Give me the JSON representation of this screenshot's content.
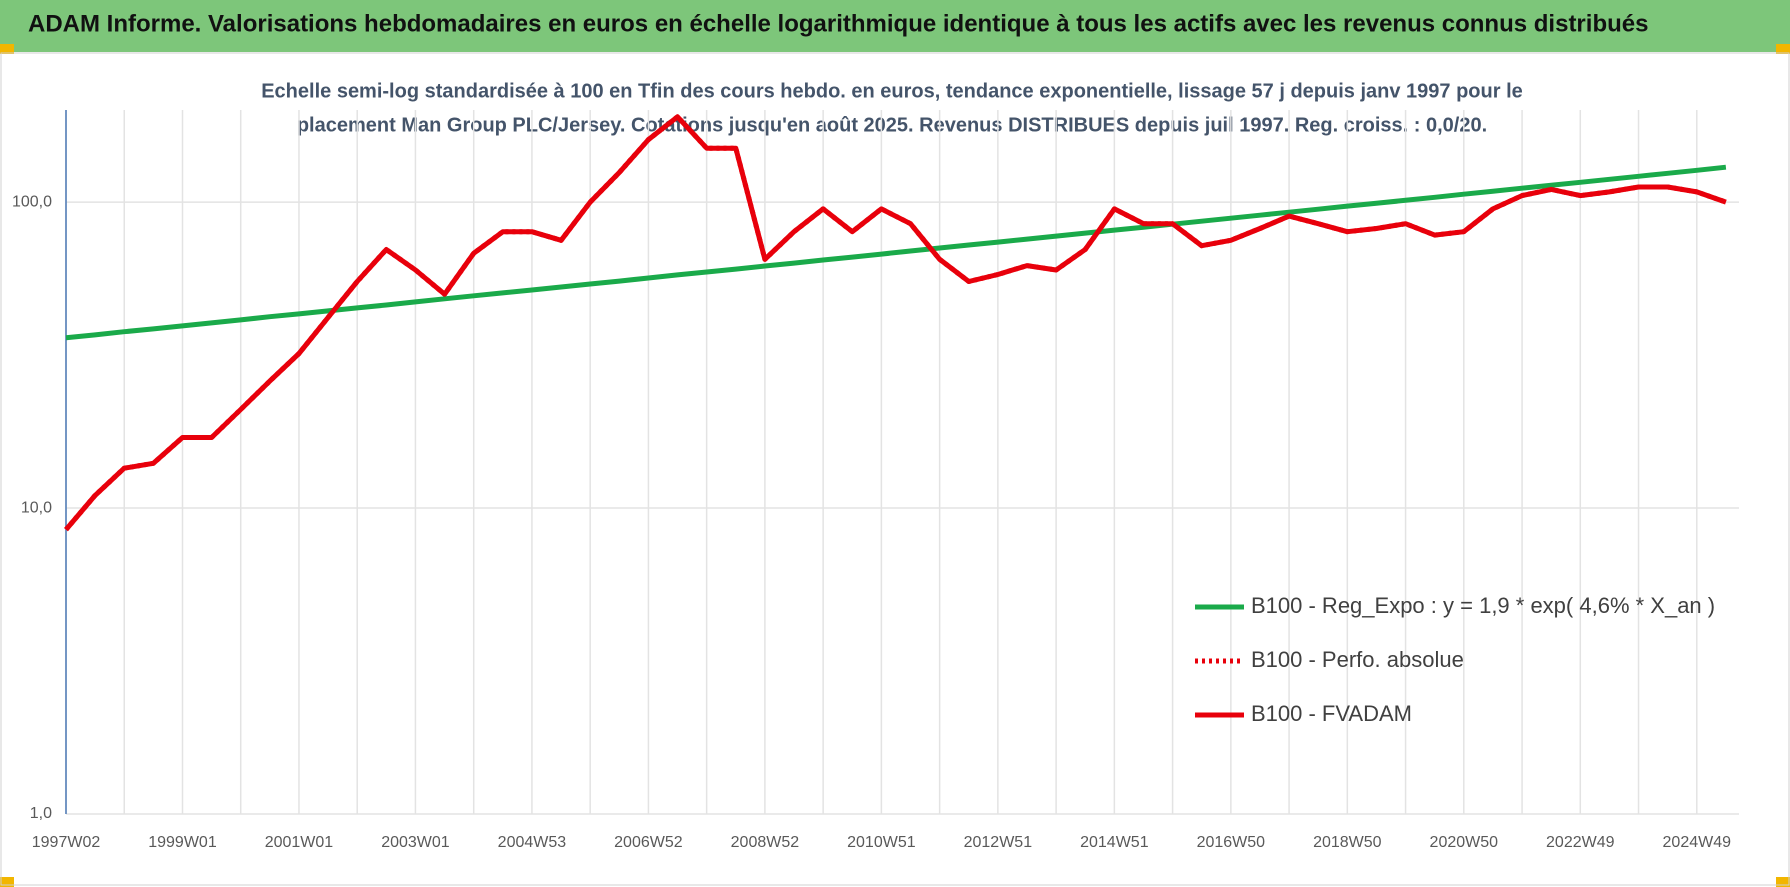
{
  "chart_data": {
    "type": "line",
    "title": "ADAM Informe. Valorisations hebdomadaires en euros en échelle logarithmique identique à tous les actifs avec les revenus connus distribués",
    "subtitle": [
      "Echelle semi-log standardisée à 100 en Tfin des cours hebdo. en euros, tendance exponentielle, lissage 57 j depuis janv 1997 pour le",
      "placement Man Group PLC/Jersey. Cotations jusqu'en août 2025. Revenus DISTRIBUES depuis juil 1997. Reg. croiss. : 0,0/20."
    ],
    "categories": [
      "1997W02",
      null,
      null,
      null,
      "1999W01",
      null,
      null,
      null,
      "2001W01",
      null,
      null,
      null,
      "2003W01",
      null,
      null,
      null,
      "2004W53",
      null,
      null,
      null,
      "2006W52",
      null,
      null,
      null,
      "2008W52",
      null,
      null,
      null,
      "2010W51",
      null,
      null,
      null,
      "2012W51",
      null,
      null,
      null,
      "2014W51",
      null,
      null,
      null,
      "2016W50",
      null,
      null,
      null,
      "2018W50",
      null,
      null,
      null,
      "2020W50",
      null,
      null,
      null,
      "2022W49",
      null,
      null,
      null,
      "2024W49",
      null
    ],
    "series": [
      {
        "name": "B100 - Reg_Expo : y = 1,9 * exp( 4,6% *  X_an )",
        "color": "#1aaa4a",
        "style": "solid",
        "values": [
          36,
          36.8,
          37.7,
          38.5,
          39.4,
          40.3,
          41.2,
          42.2,
          43.1,
          44.1,
          45.1,
          46.1,
          47.2,
          48.3,
          49.4,
          50.5,
          51.6,
          52.8,
          54,
          55.2,
          56.5,
          57.8,
          59.1,
          60.4,
          61.8,
          63.2,
          64.7,
          66.1,
          67.6,
          69.2,
          70.8,
          72.4,
          74,
          75.7,
          77.4,
          79.2,
          81,
          82.8,
          84.7,
          86.6,
          88.6,
          90.6,
          92.7,
          94.8,
          97,
          99.2,
          101.4,
          103.7,
          106.1,
          108.5,
          111,
          113.5,
          116.1,
          118.7,
          121.4,
          124.2,
          127,
          130
        ]
      },
      {
        "name": "B100 - Perfo. absolue",
        "color": "#e8000b",
        "style": "dotted",
        "values": [
          8.5,
          11,
          13.5,
          14,
          17,
          17,
          21,
          26,
          32,
          42,
          55,
          70,
          60,
          50,
          68,
          80,
          80,
          75,
          100,
          125,
          160,
          190,
          150,
          150,
          65,
          80,
          95,
          80,
          95,
          85,
          65,
          55,
          58,
          62,
          60,
          70,
          95,
          85,
          85,
          72,
          75,
          82,
          90,
          85,
          80,
          82,
          85,
          78,
          80,
          95,
          105,
          110,
          105,
          108,
          112,
          112,
          108,
          100
        ]
      },
      {
        "name": "B100 - FVADAM",
        "color": "#e8000b",
        "style": "solid",
        "values": [
          8.5,
          11,
          13.5,
          14,
          17,
          17,
          21,
          26,
          32,
          42,
          55,
          70,
          60,
          50,
          68,
          80,
          80,
          75,
          100,
          125,
          160,
          190,
          150,
          150,
          65,
          80,
          95,
          80,
          95,
          85,
          65,
          55,
          58,
          62,
          60,
          70,
          95,
          85,
          85,
          72,
          75,
          82,
          90,
          85,
          80,
          82,
          85,
          78,
          80,
          95,
          105,
          110,
          105,
          108,
          112,
          112,
          108,
          100
        ]
      }
    ],
    "ylim": [
      1,
      200
    ],
    "yticks": [
      {
        "value": 1,
        "label": "1,0"
      },
      {
        "value": 10,
        "label": "10,0"
      },
      {
        "value": 100,
        "label": "100,0"
      }
    ],
    "log_scale": true,
    "grid": true,
    "legend": "lower-right"
  }
}
